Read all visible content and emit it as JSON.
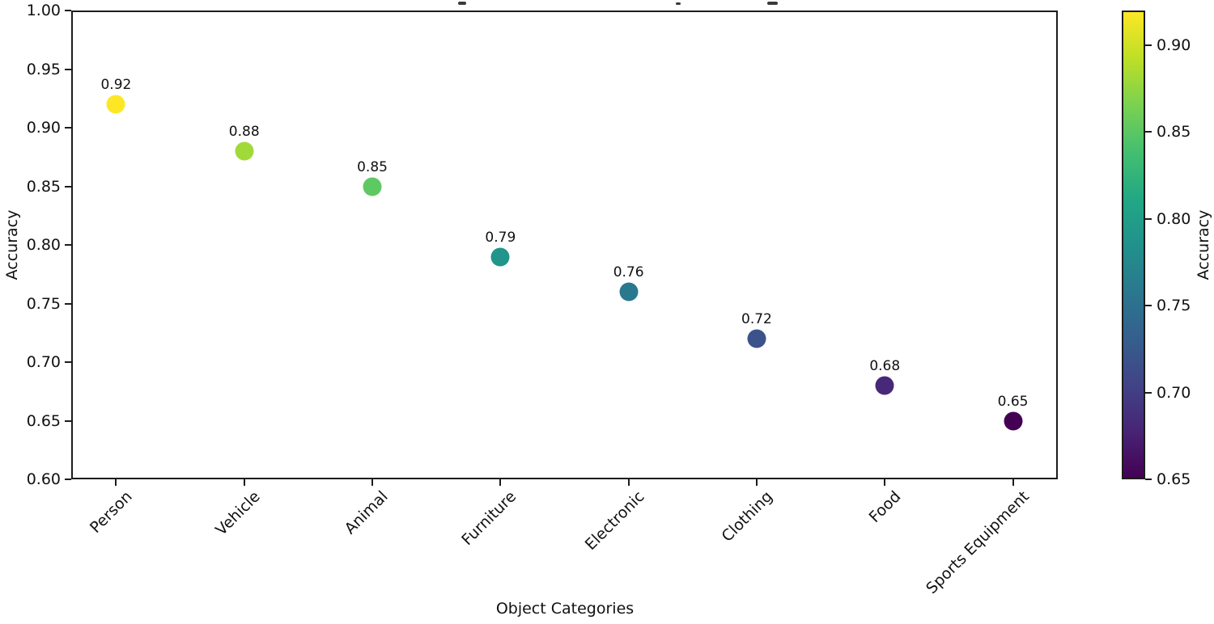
{
  "chart_data": {
    "type": "scatter",
    "xlabel": "Object Categories",
    "ylabel": "Accuracy",
    "categories": [
      "Person",
      "Vehicle",
      "Animal",
      "Furniture",
      "Electronic",
      "Clothing",
      "Food",
      "Sports Equipment"
    ],
    "values": [
      0.92,
      0.88,
      0.85,
      0.79,
      0.76,
      0.72,
      0.68,
      0.65
    ],
    "point_labels": [
      "0.92",
      "0.88",
      "0.85",
      "0.79",
      "0.76",
      "0.72",
      "0.68",
      "0.65"
    ],
    "point_colors": [
      "#fde725",
      "#a0da39",
      "#5ec962",
      "#21948b",
      "#2a788e",
      "#3b528b",
      "#482878",
      "#440154"
    ],
    "ylim": [
      0.6,
      1.0
    ],
    "yticks": [
      "1.00",
      "0.95",
      "0.90",
      "0.85",
      "0.80",
      "0.75",
      "0.70",
      "0.65",
      "0.60"
    ],
    "grid": false,
    "legend_position": "none",
    "colormap": "viridis",
    "colorbar": {
      "label": "Accuracy",
      "vmin": 0.65,
      "vmax": 0.92,
      "ticks": [
        "0.90",
        "0.85",
        "0.80",
        "0.75",
        "0.70",
        "0.65"
      ],
      "tick_values": [
        0.9,
        0.85,
        0.8,
        0.75,
        0.7,
        0.65
      ],
      "gradient_stops_top_to_bottom": [
        "#fde725",
        "#bddf26",
        "#7ad151",
        "#44bf70",
        "#22a884",
        "#21918c",
        "#2a788e",
        "#355f8d",
        "#414487",
        "#482475",
        "#440154"
      ]
    }
  }
}
